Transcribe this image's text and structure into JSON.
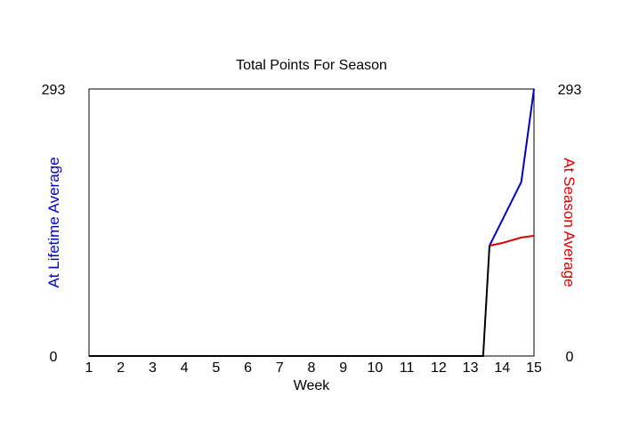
{
  "chart_data": {
    "type": "line",
    "title": "Total Points For Season",
    "xlabel": "Week",
    "ylabel_left": "At Lifetime Average",
    "ylabel_right": "At Season Average",
    "x_ticks": [
      "1",
      "2",
      "3",
      "4",
      "5",
      "6",
      "7",
      "8",
      "9",
      "10",
      "11",
      "12",
      "13",
      "14",
      "15"
    ],
    "xlim": [
      1,
      15
    ],
    "ylim": [
      0,
      293
    ],
    "y_ticks_left": [
      "0",
      "293"
    ],
    "y_ticks_right": [
      "0",
      "293"
    ],
    "grid": false,
    "series": [
      {
        "color": "#0000cc",
        "axis": "left",
        "points": [
          [
            13.6,
            121
          ],
          [
            14.6,
            191
          ],
          [
            15,
            293
          ]
        ]
      },
      {
        "color": "#dd0000",
        "axis": "right",
        "points": [
          [
            13.6,
            121
          ],
          [
            14,
            124
          ],
          [
            14.6,
            130
          ],
          [
            15,
            132
          ]
        ]
      },
      {
        "color": "#000000",
        "axis": "left",
        "points": [
          [
            1,
            0
          ],
          [
            13.4,
            0
          ],
          [
            13.6,
            121
          ]
        ]
      }
    ]
  }
}
